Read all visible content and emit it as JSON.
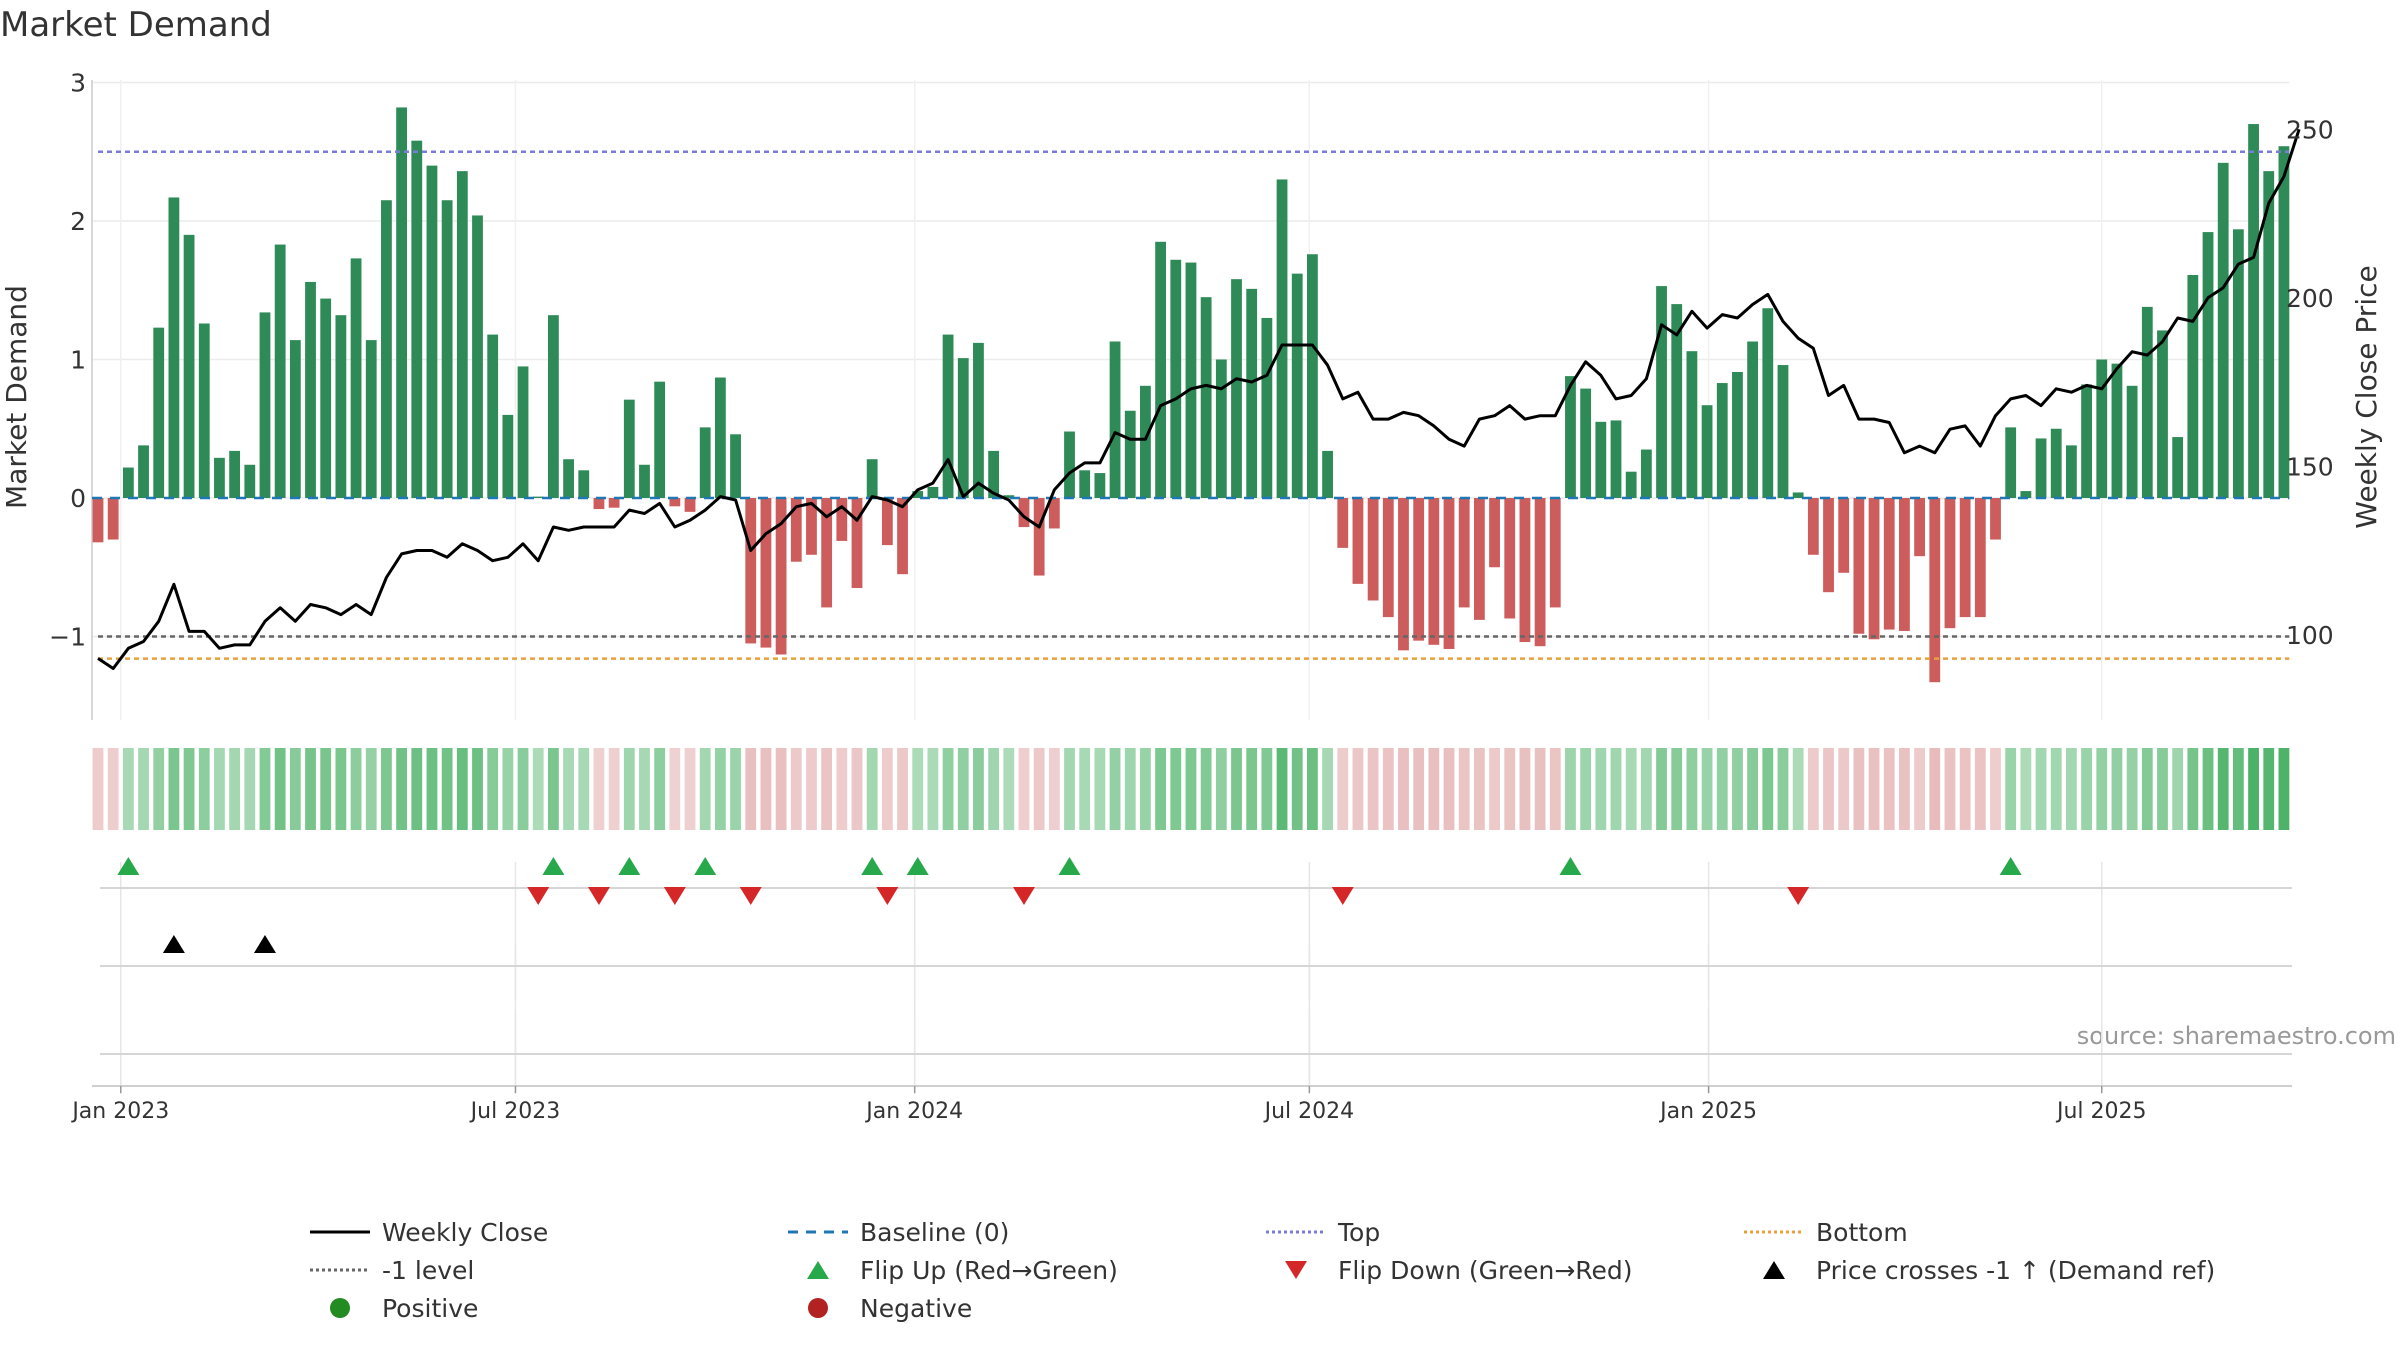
{
  "chart_data": {
    "type": "bar",
    "title": "Market Demand",
    "ylabel": "Market Demand",
    "y2label": "Weekly Close Price",
    "ylim": [
      -1.55,
      3.0
    ],
    "y_ticks": [
      {
        "v": 3,
        "label": "3"
      },
      {
        "v": 2,
        "label": "2"
      },
      {
        "v": 1,
        "label": "1"
      },
      {
        "v": 0,
        "label": "0"
      },
      {
        "v": -1,
        "label": "−1"
      }
    ],
    "y2lim": [
      80,
      265
    ],
    "y2_ticks": [
      {
        "v": 250,
        "label": "250"
      },
      {
        "v": 200,
        "label": "200"
      },
      {
        "v": 150,
        "label": "150"
      },
      {
        "v": 100,
        "label": "100"
      }
    ],
    "x_ticks": [
      {
        "i": 1.5,
        "label": "Jan 2023"
      },
      {
        "i": 27.5,
        "label": "Jul 2023"
      },
      {
        "i": 53.8,
        "label": "Jan 2024"
      },
      {
        "i": 79.8,
        "label": "Jul 2024"
      },
      {
        "i": 106.1,
        "label": "Jan 2025"
      },
      {
        "i": 132,
        "label": "Jul 2025"
      }
    ],
    "top_level": 2.5,
    "bottom_level": -1.16,
    "minus_one_level": -1,
    "demand": [
      -0.32,
      -0.3,
      0.22,
      0.38,
      1.23,
      2.17,
      1.9,
      1.26,
      0.29,
      0.34,
      0.24,
      1.34,
      1.83,
      1.14,
      1.56,
      1.44,
      1.32,
      1.73,
      1.14,
      2.15,
      2.82,
      2.58,
      2.4,
      2.15,
      2.36,
      2.04,
      1.18,
      0.6,
      0.95,
      0.01,
      1.32,
      0.28,
      0.2,
      -0.08,
      -0.07,
      0.71,
      0.24,
      0.84,
      -0.06,
      -0.1,
      0.51,
      0.87,
      0.46,
      -1.05,
      -1.08,
      -1.13,
      -0.46,
      -0.41,
      -0.79,
      -0.31,
      -0.65,
      0.28,
      -0.34,
      -0.55,
      0.05,
      0.08,
      1.18,
      1.01,
      1.12,
      0.34,
      0.02,
      -0.21,
      -0.56,
      -0.22,
      0.48,
      0.2,
      0.18,
      1.13,
      0.63,
      0.81,
      1.85,
      1.72,
      1.7,
      1.45,
      1.0,
      1.58,
      1.51,
      1.3,
      2.3,
      1.62,
      1.76,
      0.34,
      -0.36,
      -0.62,
      -0.74,
      -0.86,
      -1.1,
      -1.03,
      -1.06,
      -1.09,
      -0.79,
      -0.88,
      -0.5,
      -0.87,
      -1.04,
      -1.07,
      -0.79,
      0.88,
      0.79,
      0.55,
      0.56,
      0.19,
      0.35,
      1.53,
      1.4,
      1.06,
      0.67,
      0.83,
      0.91,
      1.13,
      1.37,
      0.96,
      0.04,
      -0.41,
      -0.68,
      -0.54,
      -0.98,
      -1.02,
      -0.95,
      -0.96,
      -0.42,
      -1.33,
      -0.94,
      -0.86,
      -0.86,
      -0.3,
      0.51,
      0.05,
      0.43,
      0.5,
      0.38,
      0.82,
      1.0,
      0.97,
      0.81,
      1.38,
      1.21,
      0.44,
      1.61,
      1.92,
      2.42,
      1.94,
      2.7,
      2.36,
      2.54
    ],
    "close": [
      93,
      90,
      96,
      98,
      104,
      115,
      101,
      101,
      96,
      97,
      97,
      104,
      108,
      104,
      109,
      108,
      106,
      109,
      106,
      117,
      124,
      125,
      125,
      123,
      127,
      125,
      122,
      123,
      127,
      122,
      132,
      131,
      132,
      132,
      132,
      137,
      136,
      139,
      132,
      134,
      137,
      141,
      140,
      125,
      130,
      133,
      138,
      139,
      135,
      138,
      134,
      141,
      140,
      138,
      143,
      145,
      152,
      141,
      145,
      142,
      140,
      135,
      132,
      143,
      148,
      151,
      151,
      160,
      158,
      158,
      168,
      170,
      173,
      174,
      173,
      176,
      175,
      177,
      186,
      186,
      186,
      180,
      170,
      172,
      164,
      164,
      166,
      165,
      162,
      158,
      156,
      164,
      165,
      168,
      164,
      165,
      165,
      174,
      181,
      177,
      170,
      171,
      176,
      192,
      189,
      196,
      191,
      195,
      194,
      198,
      201,
      193,
      188,
      185,
      171,
      174,
      164,
      164,
      163,
      154,
      156,
      154,
      161,
      162,
      156,
      165,
      170,
      171,
      168,
      173,
      172,
      174,
      173,
      179,
      184,
      183,
      187,
      194,
      193,
      200,
      203,
      210,
      212,
      228,
      236,
      250
    ],
    "sentiment_strip_ranges": [
      [
        0,
        1
      ],
      [
        2,
        16
      ],
      [
        17,
        29
      ],
      [
        30,
        30
      ],
      [
        31,
        34
      ],
      [
        35,
        37
      ],
      [
        38,
        39
      ],
      [
        40,
        42
      ],
      [
        43,
        53
      ],
      [
        54,
        60
      ],
      [
        61,
        63
      ],
      [
        64,
        80
      ],
      [
        81,
        96
      ],
      [
        97,
        112
      ],
      [
        113,
        126
      ],
      [
        127,
        141
      ]
    ],
    "flip_up": [
      2,
      30,
      35,
      40,
      51,
      54,
      64,
      97,
      126
    ],
    "flip_down": [
      29,
      33,
      38,
      43,
      52,
      61,
      82,
      112
    ],
    "price_cross": [
      5,
      11
    ],
    "legend": [
      {
        "label": "Weekly Close",
        "kind": "line",
        "color": "#000000",
        "dash": ""
      },
      {
        "label": "Baseline (0)",
        "kind": "line",
        "color": "#1f77b4",
        "dash": "10,8"
      },
      {
        "label": "Top",
        "kind": "line",
        "color": "#7b7bd8",
        "dash": "3,3"
      },
      {
        "label": "Bottom",
        "kind": "line",
        "color": "#e8a13c",
        "dash": "3,3"
      },
      {
        "label": "-1 level",
        "kind": "line",
        "color": "#666666",
        "dash": "3,3"
      },
      {
        "label": "Flip Up (Red→Green)",
        "kind": "tri-up",
        "color": "#27a84a"
      },
      {
        "label": "Flip Down (Green→Red)",
        "kind": "tri-down",
        "color": "#d62728"
      },
      {
        "label": "Price crosses -1 ↑ (Demand ref)",
        "kind": "tri-up",
        "color": "#000000"
      },
      {
        "label": "Positive",
        "kind": "dot",
        "color": "#228b22"
      },
      {
        "label": "Negative",
        "kind": "dot",
        "color": "#b22222"
      }
    ],
    "source": "source: sharemaestro.com",
    "colors": {
      "positive_bar": "#2e8b57",
      "negative_bar": "#cd5c5c",
      "close_line": "#000000",
      "baseline": "#1f77b4",
      "top": "#7b7bd8",
      "bottom": "#e8a13c",
      "minus_one": "#666666"
    }
  }
}
